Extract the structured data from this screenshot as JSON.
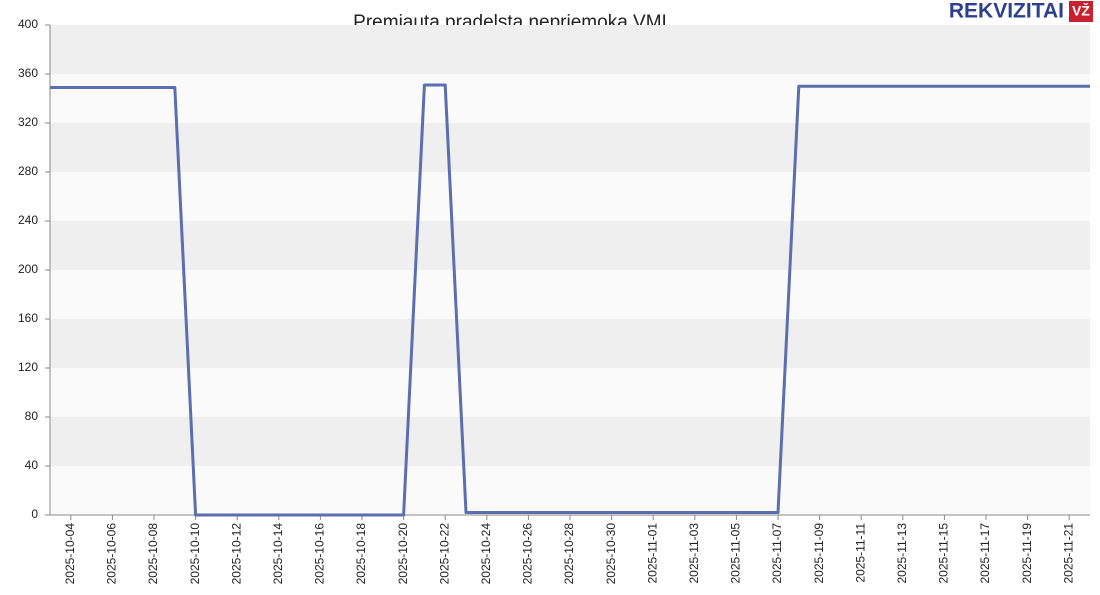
{
  "logo": {
    "text": "REKVIZITAI",
    "badge": "VŽ"
  },
  "chart_data": {
    "type": "line",
    "title": "Premiauta pradelsta nepriemoka VMI",
    "x": [
      "2025-10-03",
      "2025-10-04",
      "2025-10-05",
      "2025-10-06",
      "2025-10-07",
      "2025-10-08",
      "2025-10-09",
      "2025-10-10",
      "2025-10-11",
      "2025-10-12",
      "2025-10-13",
      "2025-10-14",
      "2025-10-15",
      "2025-10-16",
      "2025-10-17",
      "2025-10-18",
      "2025-10-19",
      "2025-10-20",
      "2025-10-21",
      "2025-10-22",
      "2025-10-23",
      "2025-10-24",
      "2025-10-25",
      "2025-10-26",
      "2025-10-27",
      "2025-10-28",
      "2025-10-29",
      "2025-10-30",
      "2025-10-31",
      "2025-11-01",
      "2025-11-02",
      "2025-11-03",
      "2025-11-04",
      "2025-11-05",
      "2025-11-06",
      "2025-11-07",
      "2025-11-08",
      "2025-11-09",
      "2025-11-10",
      "2025-11-11",
      "2025-11-12",
      "2025-11-13",
      "2025-11-14",
      "2025-11-15",
      "2025-11-16",
      "2025-11-17",
      "2025-11-18",
      "2025-11-19",
      "2025-11-20",
      "2025-11-21",
      "2025-11-22"
    ],
    "xticks": [
      "2025-10-04",
      "2025-10-06",
      "2025-10-08",
      "2025-10-10",
      "2025-10-12",
      "2025-10-14",
      "2025-10-16",
      "2025-10-18",
      "2025-10-20",
      "2025-10-22",
      "2025-10-24",
      "2025-10-26",
      "2025-10-28",
      "2025-10-30",
      "2025-11-01",
      "2025-11-03",
      "2025-11-05",
      "2025-11-07",
      "2025-11-09",
      "2025-11-11",
      "2025-11-13",
      "2025-11-15",
      "2025-11-17",
      "2025-11-19",
      "2025-11-21"
    ],
    "series": [
      {
        "color": "#5b6eb0",
        "values": [
          349,
          349,
          349,
          349,
          349,
          349,
          349,
          0,
          0,
          0,
          0,
          0,
          0,
          0,
          0,
          0,
          0,
          0,
          351,
          351,
          2,
          2,
          2,
          2,
          2,
          2,
          2,
          2,
          2,
          2,
          2,
          2,
          2,
          2,
          2,
          2,
          350,
          350,
          350,
          350,
          350,
          350,
          350,
          350,
          350,
          350,
          350,
          350,
          350,
          350,
          350
        ]
      }
    ],
    "ylim": [
      0,
      400
    ],
    "yticks": [
      0,
      40,
      80,
      120,
      160,
      200,
      240,
      280,
      320,
      360,
      400
    ],
    "grid": "banded"
  }
}
